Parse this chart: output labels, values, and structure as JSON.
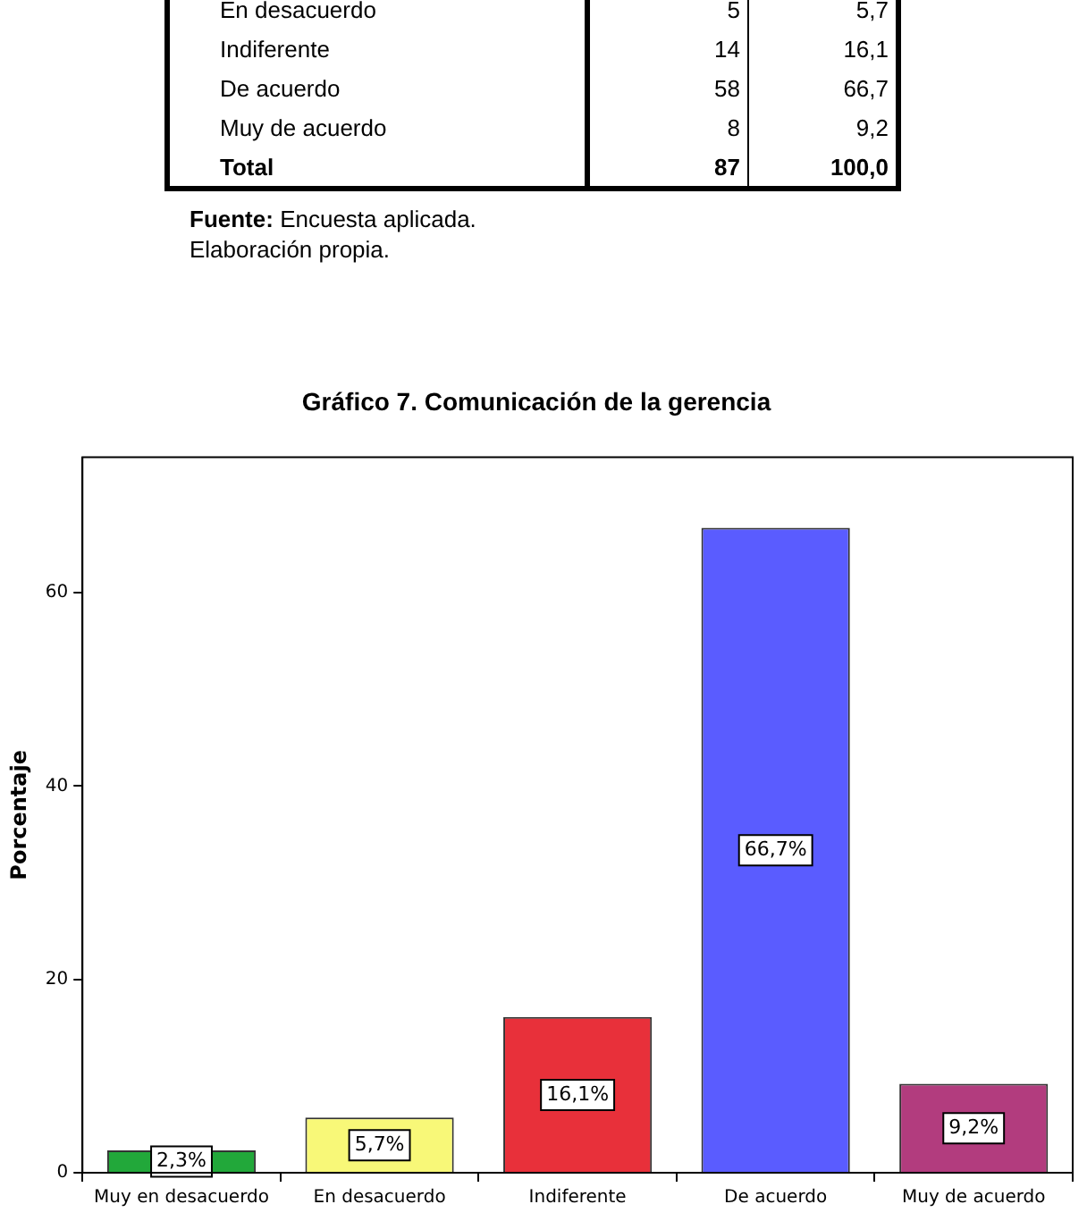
{
  "chart_data": {
    "type": "bar",
    "title": "Gráfico 7. Comunicación de la gerencia",
    "ylabel": "Porcentaje",
    "categories": [
      "Muy en desacuerdo",
      "En desacuerdo",
      "Indiferente",
      "De acuerdo",
      "Muy de acuerdo"
    ],
    "values": [
      2.3,
      5.7,
      16.1,
      66.7,
      9.2
    ],
    "colors": [
      "#22a83a",
      "#f8f878",
      "#e8303a",
      "#5a5cff",
      "#b23c7e"
    ],
    "value_labels": [
      "2,3%",
      "5,7%",
      "16,1%",
      "66,7%",
      "9,2%"
    ],
    "ylim": [
      0,
      74
    ],
    "yticks": [
      0,
      20,
      40,
      60
    ],
    "grid": false,
    "legend": false,
    "annotations": [
      "En desacuerdo\t5\t5,7",
      "Indiferente\t14\t16,1",
      "De acuerdo\t58\t66,7",
      "Muy de acuerdo\t8\t9,2",
      "Total\t87\t100,0",
      "Fuente: Encuesta aplicada.",
      "Elaboración propia."
    ]
  }
}
